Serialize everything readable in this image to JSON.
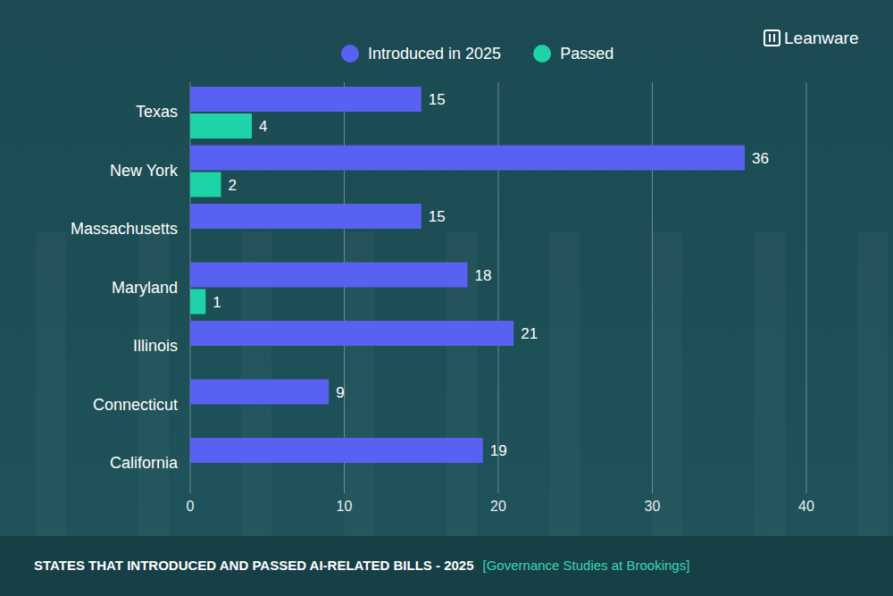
{
  "chart_data": {
    "type": "bar",
    "orientation": "horizontal",
    "title": "STATES THAT INTRODUCED AND PASSED AI-RELATED BILLS - 2025",
    "source": "[Governance Studies at Brookings]",
    "logo": "Leanware",
    "categories": [
      "Texas",
      "New York",
      "Massachusetts",
      "Maryland",
      "Illinois",
      "Connecticut",
      "California"
    ],
    "series": [
      {
        "name": "Introduced in 2025",
        "color": "#5961f2",
        "values": [
          15,
          36,
          15,
          18,
          21,
          9,
          19
        ]
      },
      {
        "name": "Passed",
        "color": "#1fd3a8",
        "values": [
          4,
          2,
          null,
          1,
          null,
          null,
          null
        ]
      }
    ],
    "xlim": [
      0,
      40
    ],
    "xticks": [
      0,
      10,
      20,
      30,
      40
    ],
    "grid": true,
    "legend": "top",
    "data_labels": true
  }
}
